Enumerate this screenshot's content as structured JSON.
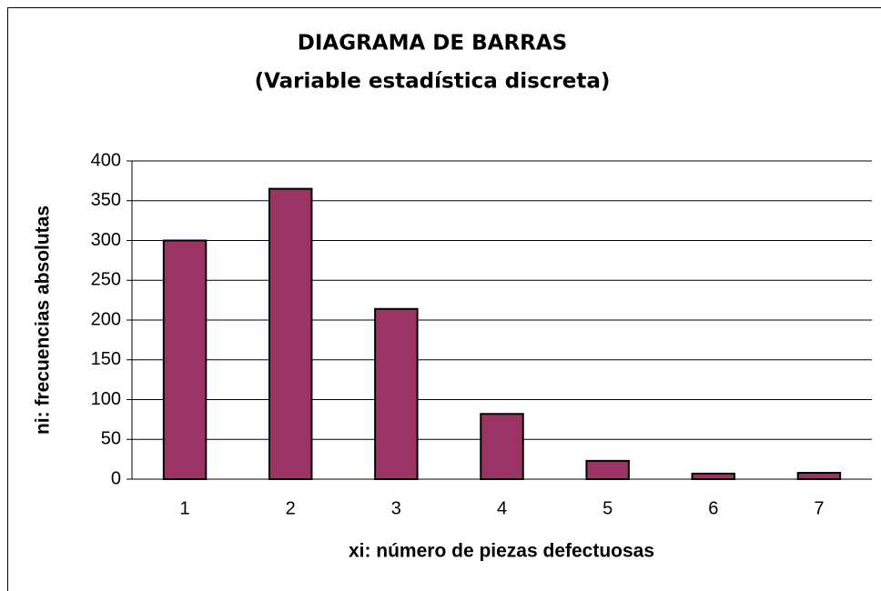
{
  "chart_data": {
    "type": "bar",
    "title": "DIAGRAMA DE BARRAS",
    "subtitle": "(Variable estadística discreta)",
    "xlabel": "xi: número de piezas defectuosas",
    "ylabel": "ni: frecuencias absolutas",
    "categories": [
      "1",
      "2",
      "3",
      "4",
      "5",
      "6",
      "7"
    ],
    "values": [
      300,
      365,
      214,
      82,
      23,
      7,
      8
    ],
    "color": "#9b3464",
    "ylim": [
      0,
      400
    ],
    "yticks": [
      0,
      50,
      100,
      150,
      200,
      250,
      300,
      350,
      400
    ],
    "grid": true
  }
}
